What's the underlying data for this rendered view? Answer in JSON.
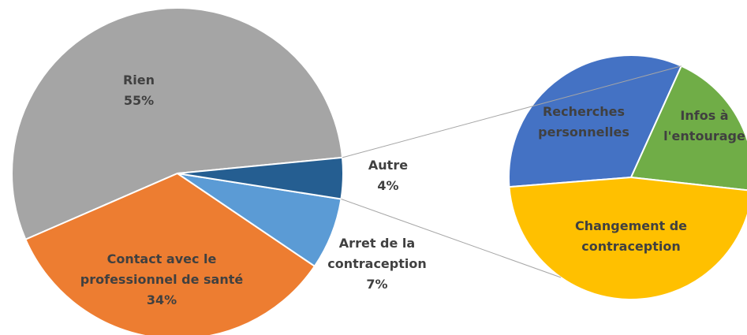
{
  "chart_data": [
    {
      "type": "pie",
      "categories": [
        "Rien",
        "Contact avec le professionnel de santé",
        "Arret de la contraception",
        "Autre"
      ],
      "values": [
        55,
        34,
        7,
        4
      ],
      "value_labels": [
        "55%",
        "34%",
        "7%",
        "4%"
      ],
      "colors": [
        "#a5a5a5",
        "#ed7d31",
        "#5b9bd5",
        "#255e91"
      ]
    },
    {
      "type": "pie",
      "categories": [
        "Recherches personnelles",
        "Infos à l'entourage",
        "Changement de contraception"
      ],
      "values": [
        33,
        20,
        47
      ],
      "colors": [
        "#4472c4",
        "#70ad47",
        "#ffc000"
      ]
    }
  ]
}
